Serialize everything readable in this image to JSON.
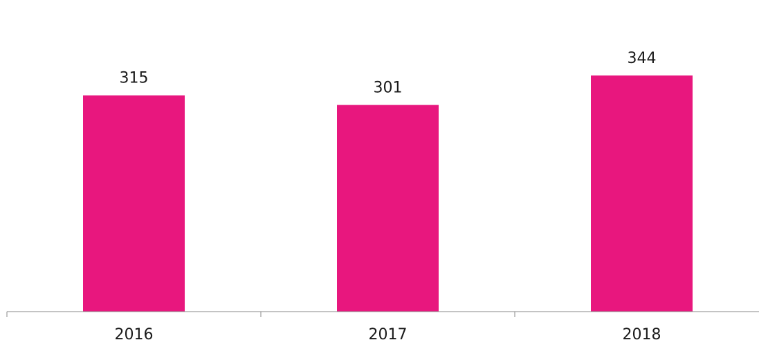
{
  "chart_data": {
    "type": "bar",
    "categories": [
      "2016",
      "2017",
      "2018"
    ],
    "values": [
      315,
      301,
      344
    ],
    "data_labels": [
      "315",
      "301",
      "344"
    ],
    "title": "",
    "xlabel": "",
    "ylabel": "",
    "ylim": [
      0,
      400
    ],
    "grid": false,
    "legend": "none",
    "bar_color": "#E8177E",
    "axis_color": "#888888"
  }
}
